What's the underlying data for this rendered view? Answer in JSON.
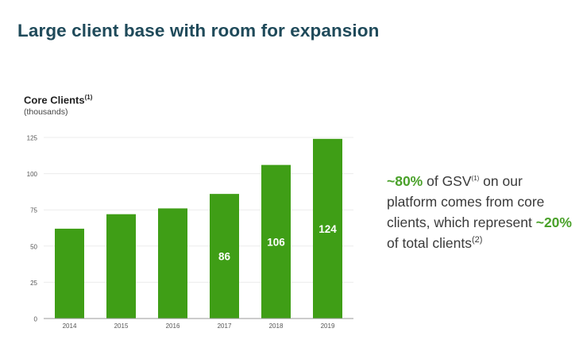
{
  "page": {
    "title": "Large client base with room for expansion"
  },
  "chart_data": {
    "type": "bar",
    "title": "Core Clients",
    "title_footnote": "(1)",
    "subtitle": "(thousands)",
    "categories": [
      "2014",
      "2015",
      "2016",
      "2017",
      "2018",
      "2019"
    ],
    "values": [
      62,
      72,
      76,
      86,
      106,
      124
    ],
    "data_labels": [
      "",
      "",
      "",
      "86",
      "106",
      "124"
    ],
    "yticks": [
      "0",
      "25",
      "50",
      "75",
      "100",
      "125"
    ],
    "ylim": [
      0,
      125
    ],
    "grid": true,
    "bar_color": "#3f9e16",
    "label_color": "#ffffff"
  },
  "callout": {
    "pct1": "~80%",
    "text1": " of GSV",
    "fn1": "(1)",
    "text2": " on our platform comes from core clients, which represent ",
    "pct2": "~20%",
    "text3": " of total clients",
    "fn2": "(2)",
    "highlight_color": "#4aa12a"
  }
}
